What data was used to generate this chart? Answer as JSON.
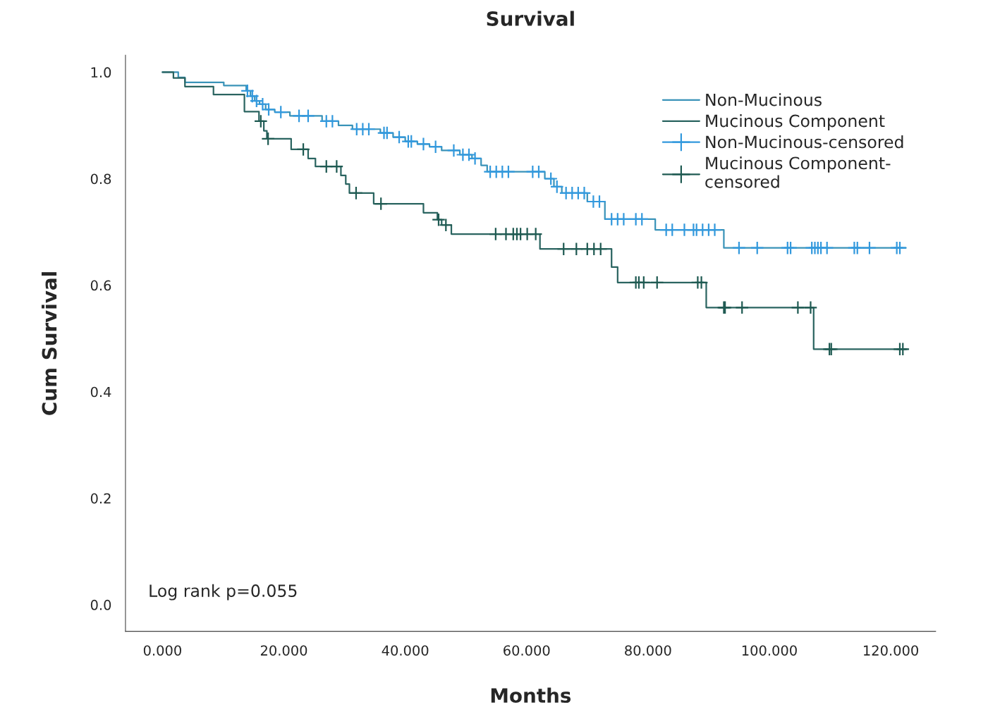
{
  "chart_data": {
    "type": "step",
    "title": "Survival",
    "xlabel": "Months",
    "ylabel": "Cum Survival",
    "xlim": [
      -6.1,
      127.4
    ],
    "ylim": [
      -0.05,
      1.032
    ],
    "xticks": [
      {
        "value": 0,
        "label": "0.000"
      },
      {
        "value": 20,
        "label": "20.000"
      },
      {
        "value": 40,
        "label": "40.000"
      },
      {
        "value": 60,
        "label": "60.000"
      },
      {
        "value": 80,
        "label": "80.000"
      },
      {
        "value": 100,
        "label": "100.000"
      },
      {
        "value": 120,
        "label": "120.000"
      }
    ],
    "yticks": [
      {
        "value": 0,
        "label": "0.0"
      },
      0.2,
      0.4,
      0.6,
      0.8,
      {
        "value": 1,
        "label": "1.0"
      }
    ],
    "grid": false,
    "legend": "top right",
    "annotations": [
      "Log rank p=0.055"
    ],
    "series": [
      {
        "name": "Non-Mucinous",
        "color": "#3a93b8",
        "x": [
          0,
          2.6,
          3.7,
          10.1,
          13.8,
          14.5,
          15.2,
          16.0,
          17.0,
          18.5,
          21.0,
          26.3,
          29.0,
          31.3,
          35.9,
          38,
          40,
          42,
          44,
          46,
          49,
          51,
          52.5,
          53.5,
          63.0,
          64.5,
          65.8,
          70,
          72.9,
          81.2,
          92.5,
          122.5
        ],
        "values": [
          1.0,
          0.99,
          0.981,
          0.975,
          0.965,
          0.955,
          0.946,
          0.94,
          0.93,
          0.925,
          0.918,
          0.908,
          0.9,
          0.893,
          0.886,
          0.878,
          0.87,
          0.865,
          0.86,
          0.853,
          0.845,
          0.838,
          0.825,
          0.813,
          0.8,
          0.785,
          0.773,
          0.757,
          0.724,
          0.704,
          0.67,
          0.67
        ]
      },
      {
        "name": "Mucinous Component",
        "color": "#2a6460",
        "x": [
          0,
          1.8,
          3.7,
          8.4,
          13.5,
          15.9,
          16.7,
          17.2,
          21.2,
          24.0,
          25.2,
          29.4,
          30.2,
          30.8,
          34.8,
          43.0,
          45.3,
          46.0,
          47.6,
          62.2,
          74.0,
          75.0,
          89.6,
          107.3,
          122.7
        ],
        "values": [
          1.0,
          0.989,
          0.973,
          0.958,
          0.926,
          0.908,
          0.89,
          0.875,
          0.855,
          0.838,
          0.823,
          0.806,
          0.79,
          0.773,
          0.753,
          0.736,
          0.723,
          0.713,
          0.696,
          0.668,
          0.634,
          0.605,
          0.558,
          0.48,
          0.48
        ]
      },
      {
        "name": "Non-Mucinous-censored",
        "type": "scatter",
        "marker": "cross",
        "color": "#3399dd",
        "x": [
          14.0,
          14.8,
          15.5,
          16.5,
          17.5,
          19.5,
          22.5,
          24,
          27,
          28,
          32,
          33,
          34,
          36.5,
          37,
          39,
          40.5,
          41,
          43,
          45,
          48,
          49.5,
          50.5,
          51.5,
          54,
          55,
          56,
          57,
          61,
          62,
          64,
          65,
          66.5,
          67.5,
          68.5,
          69.5,
          71,
          72,
          74,
          75,
          76,
          78,
          79,
          83,
          84,
          86,
          87.5,
          88,
          89,
          90,
          91,
          95,
          98,
          103,
          103.5,
          107,
          107.5,
          108,
          108.5,
          109.5,
          114,
          114.5,
          116.5,
          121,
          121.5
        ],
        "values": [
          0.965,
          0.955,
          0.946,
          0.94,
          0.93,
          0.925,
          0.918,
          0.918,
          0.908,
          0.908,
          0.893,
          0.893,
          0.893,
          0.886,
          0.886,
          0.878,
          0.87,
          0.87,
          0.865,
          0.86,
          0.853,
          0.845,
          0.845,
          0.838,
          0.813,
          0.813,
          0.813,
          0.813,
          0.813,
          0.813,
          0.8,
          0.785,
          0.773,
          0.773,
          0.773,
          0.773,
          0.757,
          0.757,
          0.724,
          0.724,
          0.724,
          0.724,
          0.724,
          0.704,
          0.704,
          0.704,
          0.704,
          0.704,
          0.704,
          0.704,
          0.704,
          0.67,
          0.67,
          0.67,
          0.67,
          0.67,
          0.67,
          0.67,
          0.67,
          0.67,
          0.67,
          0.67,
          0.67,
          0.67,
          0.67
        ]
      },
      {
        "name": "Mucinous Component-\ncensored",
        "type": "scatter",
        "marker": "cross",
        "color": "#1f5a52",
        "x": [
          16.2,
          17.4,
          23.2,
          27,
          28.7,
          31.9,
          36,
          45.5,
          46.7,
          54.9,
          56.6,
          57.8,
          58.4,
          59,
          60.1,
          61.5,
          66.1,
          68.2,
          70,
          71.1,
          72.2,
          78,
          78.5,
          79.3,
          81.5,
          88.2,
          88.8,
          92.5,
          92.7,
          95.5,
          104.7,
          106.8,
          109.9,
          110.2,
          121.5,
          122
        ],
        "values": [
          0.908,
          0.875,
          0.855,
          0.823,
          0.823,
          0.773,
          0.753,
          0.723,
          0.713,
          0.696,
          0.696,
          0.696,
          0.696,
          0.696,
          0.696,
          0.696,
          0.668,
          0.668,
          0.668,
          0.668,
          0.668,
          0.605,
          0.605,
          0.605,
          0.605,
          0.605,
          0.605,
          0.558,
          0.558,
          0.558,
          0.558,
          0.558,
          0.48,
          0.48,
          0.48,
          0.48
        ]
      }
    ]
  }
}
